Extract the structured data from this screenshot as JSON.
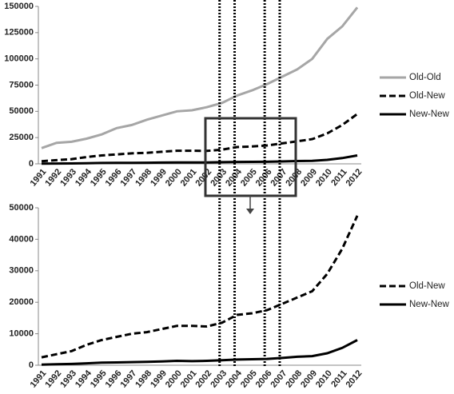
{
  "chart_data": [
    {
      "type": "line",
      "categories": [
        "1991",
        "1992",
        "1993",
        "1994",
        "1995",
        "1996",
        "1997",
        "1998",
        "1999",
        "2000",
        "2001",
        "2002",
        "2003",
        "2004",
        "2005",
        "2006",
        "2007",
        "2008",
        "2009",
        "2010",
        "2011",
        "2012"
      ],
      "ylim": [
        0,
        150000
      ],
      "yticks": [
        0,
        25000,
        50000,
        75000,
        100000,
        125000,
        150000
      ],
      "series": [
        {
          "name": "Old-Old",
          "color": "#a6a6a6",
          "line_style": "solid",
          "values": [
            15000,
            20000,
            21000,
            24000,
            28000,
            34000,
            37000,
            42000,
            46000,
            50000,
            51000,
            54000,
            58000,
            65000,
            70000,
            76000,
            83000,
            90000,
            100000,
            119000,
            131000,
            149000
          ]
        },
        {
          "name": "Old-New",
          "color": "#000000",
          "line_style": "dashed",
          "values": [
            2500,
            3500,
            4500,
            6500,
            8000,
            9000,
            10000,
            10500,
            11500,
            12500,
            12500,
            12300,
            13500,
            16000,
            16500,
            17500,
            19500,
            21500,
            23500,
            29000,
            37000,
            47500
          ]
        },
        {
          "name": "New-New",
          "color": "#000000",
          "line_style": "solid",
          "values": [
            200,
            300,
            400,
            600,
            800,
            900,
            1000,
            1100,
            1200,
            1400,
            1300,
            1400,
            1600,
            1800,
            1900,
            2000,
            2300,
            2700,
            2900,
            3800,
            5500,
            8000
          ]
        }
      ]
    },
    {
      "type": "line",
      "categories": [
        "1991",
        "1992",
        "1993",
        "1994",
        "1995",
        "1996",
        "1997",
        "1998",
        "1999",
        "2000",
        "2001",
        "2002",
        "2003",
        "2004",
        "2005",
        "2006",
        "2007",
        "2008",
        "2009",
        "2010",
        "2011",
        "2012"
      ],
      "ylim": [
        0,
        50000
      ],
      "yticks": [
        0,
        10000,
        20000,
        30000,
        40000,
        50000
      ],
      "series": [
        {
          "name": "Old-New",
          "color": "#000000",
          "line_style": "dashed",
          "values": [
            2500,
            3500,
            4500,
            6500,
            8000,
            9000,
            10000,
            10500,
            11500,
            12500,
            12500,
            12300,
            13500,
            16000,
            16500,
            17500,
            19500,
            21500,
            23500,
            29000,
            37000,
            47500
          ]
        },
        {
          "name": "New-New",
          "color": "#000000",
          "line_style": "solid",
          "values": [
            200,
            300,
            400,
            600,
            800,
            900,
            1000,
            1100,
            1200,
            1400,
            1300,
            1400,
            1600,
            1800,
            1900,
            2000,
            2300,
            2700,
            2900,
            3800,
            5500,
            8000
          ]
        }
      ]
    }
  ]
}
